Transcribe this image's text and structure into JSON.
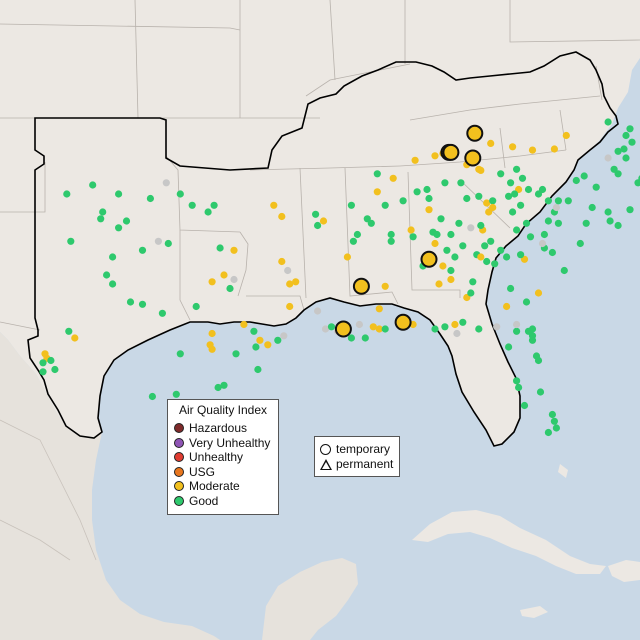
{
  "colors": {
    "ocean": "#c9d8e6",
    "land": "#ece8e3",
    "land_other": "#e6e2dc",
    "region_outline": "#000000",
    "borders": "#b8b2ac",
    "Hazardous": "#7e2a2a",
    "Very Unhealthy": "#8f55b5",
    "Unhealthy": "#e03c31",
    "USG": "#e8761e",
    "Moderate": "#f2c01e",
    "Good": "#2ec96d",
    "No data": "#c7c7c7"
  },
  "legend": {
    "title": "Air Quality Index",
    "items": [
      "Hazardous",
      "Very Unhealthy",
      "Unhealthy",
      "USG",
      "Moderate",
      "Good"
    ]
  },
  "type_legend": {
    "items": [
      {
        "label": "temporary",
        "shape": "circle-icon"
      },
      {
        "label": "permanent",
        "shape": "triangle-icon"
      }
    ]
  },
  "monitors_large": [
    {
      "category": "Moderate",
      "lon": -84.5,
      "lat": 39.1
    },
    {
      "category": "Moderate",
      "lon": -85.8,
      "lat": 38.25
    },
    {
      "category": "Moderate",
      "lon": -85.7,
      "lat": 38.25
    },
    {
      "category": "Moderate",
      "lon": -84.6,
      "lat": 38.0
    },
    {
      "category": "Moderate",
      "lon": -86.8,
      "lat": 33.5
    },
    {
      "category": "Moderate",
      "lon": -90.2,
      "lat": 32.3
    },
    {
      "category": "Moderate",
      "lon": -88.1,
      "lat": 30.7
    },
    {
      "category": "Moderate",
      "lon": -91.1,
      "lat": 30.4
    }
  ],
  "monitors_small": [
    {
      "category": "Good",
      "lon": -105.0,
      "lat": 36.4
    },
    {
      "category": "Good",
      "lon": -103.7,
      "lat": 36.8
    },
    {
      "category": "Good",
      "lon": -102.4,
      "lat": 36.4
    },
    {
      "category": "Good",
      "lon": -100.8,
      "lat": 36.2
    },
    {
      "category": "Good",
      "lon": -99.3,
      "lat": 36.4
    },
    {
      "category": "No data",
      "lon": -100.0,
      "lat": 36.9
    },
    {
      "category": "Good",
      "lon": -98.7,
      "lat": 35.9
    },
    {
      "category": "Good",
      "lon": -103.3,
      "lat": 35.3
    },
    {
      "category": "Good",
      "lon": -103.2,
      "lat": 35.6
    },
    {
      "category": "Good",
      "lon": -102.0,
      "lat": 35.2
    },
    {
      "category": "Good",
      "lon": -102.4,
      "lat": 34.9
    },
    {
      "category": "Good",
      "lon": -104.8,
      "lat": 34.3
    },
    {
      "category": "Good",
      "lon": -102.7,
      "lat": 33.6
    },
    {
      "category": "Good",
      "lon": -101.2,
      "lat": 33.9
    },
    {
      "category": "No data",
      "lon": -100.4,
      "lat": 34.3
    },
    {
      "category": "Good",
      "lon": -99.9,
      "lat": 34.2
    },
    {
      "category": "Good",
      "lon": -97.9,
      "lat": 35.6
    },
    {
      "category": "Good",
      "lon": -97.6,
      "lat": 35.9
    },
    {
      "category": "Moderate",
      "lon": -96.6,
      "lat": 33.9
    },
    {
      "category": "Good",
      "lon": -97.3,
      "lat": 34.0
    },
    {
      "category": "Good",
      "lon": -103.0,
      "lat": 32.8
    },
    {
      "category": "Good",
      "lon": -102.7,
      "lat": 32.4
    },
    {
      "category": "Good",
      "lon": -101.8,
      "lat": 31.6
    },
    {
      "category": "Good",
      "lon": -101.2,
      "lat": 31.5
    },
    {
      "category": "Good",
      "lon": -100.2,
      "lat": 31.1
    },
    {
      "category": "Moderate",
      "lon": -97.7,
      "lat": 32.5
    },
    {
      "category": "Moderate",
      "lon": -97.1,
      "lat": 32.8
    },
    {
      "category": "No data",
      "lon": -96.6,
      "lat": 32.6
    },
    {
      "category": "Good",
      "lon": -96.8,
      "lat": 32.2
    },
    {
      "category": "Good",
      "lon": -98.5,
      "lat": 31.4
    },
    {
      "category": "Moderate",
      "lon": -104.6,
      "lat": 30.0
    },
    {
      "category": "Good",
      "lon": -104.9,
      "lat": 30.3
    },
    {
      "category": "Moderate",
      "lon": -106.1,
      "lat": 29.3
    },
    {
      "category": "Moderate",
      "lon": -106.0,
      "lat": 29.1
    },
    {
      "category": "Good",
      "lon": -105.8,
      "lat": 29.0
    },
    {
      "category": "Good",
      "lon": -106.2,
      "lat": 28.9
    },
    {
      "category": "Good",
      "lon": -105.6,
      "lat": 28.6
    },
    {
      "category": "Good",
      "lon": -106.2,
      "lat": 28.5
    },
    {
      "category": "Good",
      "lon": -99.3,
      "lat": 29.3
    },
    {
      "category": "Moderate",
      "lon": -97.7,
      "lat": 30.2
    },
    {
      "category": "Moderate",
      "lon": -97.8,
      "lat": 29.7
    },
    {
      "category": "Moderate",
      "lon": -97.7,
      "lat": 29.5
    },
    {
      "category": "Good",
      "lon": -96.5,
      "lat": 29.3
    },
    {
      "category": "Moderate",
      "lon": -96.1,
      "lat": 30.6
    },
    {
      "category": "Moderate",
      "lon": -95.3,
      "lat": 29.9
    },
    {
      "category": "Good",
      "lon": -95.5,
      "lat": 29.6
    },
    {
      "category": "Moderate",
      "lon": -94.9,
      "lat": 29.7
    },
    {
      "category": "No data",
      "lon": -94.1,
      "lat": 30.1
    },
    {
      "category": "Good",
      "lon": -94.4,
      "lat": 29.9
    },
    {
      "category": "Good",
      "lon": -95.6,
      "lat": 30.3
    },
    {
      "category": "Good",
      "lon": -95.4,
      "lat": 28.6
    },
    {
      "category": "Good",
      "lon": -97.4,
      "lat": 27.8
    },
    {
      "category": "Good",
      "lon": -97.1,
      "lat": 27.9
    },
    {
      "category": "Good",
      "lon": -100.7,
      "lat": 27.4
    },
    {
      "category": "Good",
      "lon": -99.5,
      "lat": 27.5
    },
    {
      "category": "Good",
      "lon": -97.6,
      "lat": 26.2
    },
    {
      "category": "Good",
      "lon": -97.5,
      "lat": 25.9
    },
    {
      "category": "Good",
      "lon": -98.2,
      "lat": 26.2
    },
    {
      "category": "Moderate",
      "lon": -94.6,
      "lat": 35.9
    },
    {
      "category": "Moderate",
      "lon": -94.2,
      "lat": 35.4
    },
    {
      "category": "Moderate",
      "lon": -94.2,
      "lat": 33.4
    },
    {
      "category": "No data",
      "lon": -93.9,
      "lat": 33.0
    },
    {
      "category": "Moderate",
      "lon": -93.8,
      "lat": 32.4
    },
    {
      "category": "Moderate",
      "lon": -93.5,
      "lat": 32.5
    },
    {
      "category": "Moderate",
      "lon": -93.8,
      "lat": 31.4
    },
    {
      "category": "No data",
      "lon": -92.4,
      "lat": 31.2
    },
    {
      "category": "No data",
      "lon": -92.0,
      "lat": 30.4
    },
    {
      "category": "Good",
      "lon": -91.7,
      "lat": 30.5
    },
    {
      "category": "No data",
      "lon": -91.4,
      "lat": 30.3
    },
    {
      "category": "Good",
      "lon": -91.1,
      "lat": 30.2
    },
    {
      "category": "Good",
      "lon": -90.7,
      "lat": 30.0
    },
    {
      "category": "No data",
      "lon": -90.3,
      "lat": 30.6
    },
    {
      "category": "Good",
      "lon": -90.0,
      "lat": 30.0
    },
    {
      "category": "Moderate",
      "lon": -89.6,
      "lat": 30.5
    },
    {
      "category": "Moderate",
      "lon": -89.3,
      "lat": 30.4
    },
    {
      "category": "Good",
      "lon": -89.0,
      "lat": 30.4
    },
    {
      "category": "Good",
      "lon": -92.5,
      "lat": 35.5
    },
    {
      "category": "Good",
      "lon": -92.4,
      "lat": 35.0
    },
    {
      "category": "Moderate",
      "lon": -92.1,
      "lat": 35.2
    },
    {
      "category": "Good",
      "lon": -90.7,
      "lat": 35.9
    },
    {
      "category": "Good",
      "lon": -89.9,
      "lat": 35.3
    },
    {
      "category": "Good",
      "lon": -90.4,
      "lat": 34.6
    },
    {
      "category": "Good",
      "lon": -90.6,
      "lat": 34.3
    },
    {
      "category": "Moderate",
      "lon": -90.9,
      "lat": 33.6
    },
    {
      "category": "Moderate",
      "lon": -89.0,
      "lat": 32.3
    },
    {
      "category": "Moderate",
      "lon": -89.3,
      "lat": 31.3
    },
    {
      "category": "Good",
      "lon": -88.7,
      "lat": 34.3
    },
    {
      "category": "Moderate",
      "lon": -87.7,
      "lat": 34.8
    },
    {
      "category": "Good",
      "lon": -87.6,
      "lat": 34.5
    },
    {
      "category": "Good",
      "lon": -86.6,
      "lat": 34.7
    },
    {
      "category": "Good",
      "lon": -86.4,
      "lat": 34.6
    },
    {
      "category": "Moderate",
      "lon": -86.5,
      "lat": 34.2
    },
    {
      "category": "Good",
      "lon": -85.7,
      "lat": 34.6
    },
    {
      "category": "Good",
      "lon": -85.1,
      "lat": 34.1
    },
    {
      "category": "Good",
      "lon": -85.5,
      "lat": 33.6
    },
    {
      "category": "Good",
      "lon": -87.1,
      "lat": 33.2
    },
    {
      "category": "Moderate",
      "lon": -86.3,
      "lat": 32.4
    },
    {
      "category": "Moderate",
      "lon": -85.7,
      "lat": 32.6
    },
    {
      "category": "Moderate",
      "lon": -84.9,
      "lat": 31.8
    },
    {
      "category": "Moderate",
      "lon": -87.6,
      "lat": 30.6
    },
    {
      "category": "Good",
      "lon": -86.5,
      "lat": 30.4
    },
    {
      "category": "Good",
      "lon": -86.0,
      "lat": 30.5
    },
    {
      "category": "Moderate",
      "lon": -85.5,
      "lat": 30.6
    },
    {
      "category": "No data",
      "lon": -85.4,
      "lat": 30.2
    },
    {
      "category": "Good",
      "lon": -85.1,
      "lat": 30.7
    },
    {
      "category": "Good",
      "lon": -84.3,
      "lat": 30.4
    },
    {
      "category": "No data",
      "lon": -83.4,
      "lat": 30.5
    },
    {
      "category": "Good",
      "lon": -82.4,
      "lat": 30.3
    },
    {
      "category": "Good",
      "lon": -81.8,
      "lat": 30.3
    },
    {
      "category": "Good",
      "lon": -81.6,
      "lat": 30.4
    },
    {
      "category": "Good",
      "lon": -81.6,
      "lat": 30.1
    },
    {
      "category": "Good",
      "lon": -81.6,
      "lat": 29.9
    },
    {
      "category": "No data",
      "lon": -82.4,
      "lat": 30.6
    },
    {
      "category": "Good",
      "lon": -82.8,
      "lat": 29.6
    },
    {
      "category": "Good",
      "lon": -81.4,
      "lat": 29.2
    },
    {
      "category": "Good",
      "lon": -81.3,
      "lat": 29.0
    },
    {
      "category": "Good",
      "lon": -82.4,
      "lat": 28.1
    },
    {
      "category": "Good",
      "lon": -82.3,
      "lat": 27.8
    },
    {
      "category": "Good",
      "lon": -82.0,
      "lat": 27.0
    },
    {
      "category": "Good",
      "lon": -81.2,
      "lat": 27.6
    },
    {
      "category": "Good",
      "lon": -80.6,
      "lat": 26.6
    },
    {
      "category": "Good",
      "lon": -80.5,
      "lat": 26.3
    },
    {
      "category": "Good",
      "lon": -80.4,
      "lat": 26.0
    },
    {
      "category": "Good",
      "lon": -80.8,
      "lat": 25.8
    },
    {
      "category": "Good",
      "lon": -84.4,
      "lat": 33.7
    },
    {
      "category": "Moderate",
      "lon": -84.2,
      "lat": 33.6
    },
    {
      "category": "Good",
      "lon": -84.0,
      "lat": 34.1
    },
    {
      "category": "No data",
      "lon": -84.7,
      "lat": 34.9
    },
    {
      "category": "Moderate",
      "lon": -84.1,
      "lat": 34.8
    },
    {
      "category": "Good",
      "lon": -83.7,
      "lat": 34.3
    },
    {
      "category": "Good",
      "lon": -83.2,
      "lat": 33.9
    },
    {
      "category": "Good",
      "lon": -83.5,
      "lat": 33.3
    },
    {
      "category": "Good",
      "lon": -84.6,
      "lat": 32.5
    },
    {
      "category": "Good",
      "lon": -82.7,
      "lat": 32.2
    },
    {
      "category": "Moderate",
      "lon": -82.9,
      "lat": 31.4
    },
    {
      "category": "Moderate",
      "lon": -81.3,
      "lat": 32.0
    },
    {
      "category": "Good",
      "lon": -81.9,
      "lat": 31.6
    },
    {
      "category": "Moderate",
      "lon": -82.0,
      "lat": 33.5
    },
    {
      "category": "Good",
      "lon": -82.2,
      "lat": 33.7
    },
    {
      "category": "Good",
      "lon": -81.0,
      "lat": 34.0
    },
    {
      "category": "Good",
      "lon": -80.6,
      "lat": 33.8
    },
    {
      "category": "No data",
      "lon": -81.1,
      "lat": 34.2
    },
    {
      "category": "Good",
      "lon": -82.4,
      "lat": 34.8
    },
    {
      "category": "Good",
      "lon": -80.0,
      "lat": 33.0
    },
    {
      "category": "Good",
      "lon": -79.2,
      "lat": 34.2
    },
    {
      "category": "Good",
      "lon": -80.8,
      "lat": 35.2
    },
    {
      "category": "Good",
      "lon": -80.5,
      "lat": 35.6
    },
    {
      "category": "No data",
      "lon": -80.4,
      "lat": 35.8
    },
    {
      "category": "Good",
      "lon": -80.3,
      "lat": 36.1
    },
    {
      "category": "Good",
      "lon": -79.8,
      "lat": 36.1
    },
    {
      "category": "Good",
      "lon": -78.6,
      "lat": 35.8
    },
    {
      "category": "Good",
      "lon": -77.8,
      "lat": 35.6
    },
    {
      "category": "Good",
      "lon": -78.9,
      "lat": 35.1
    },
    {
      "category": "Good",
      "lon": -77.7,
      "lat": 35.2
    },
    {
      "category": "Good",
      "lon": -77.3,
      "lat": 35.0
    },
    {
      "category": "Good",
      "lon": -76.7,
      "lat": 35.7
    },
    {
      "category": "Good",
      "lon": -82.6,
      "lat": 35.6
    },
    {
      "category": "Good",
      "lon": -82.2,
      "lat": 35.9
    },
    {
      "category": "Good",
      "lon": -82.8,
      "lat": 36.3
    },
    {
      "category": "Moderate",
      "lon": -82.3,
      "lat": 36.6
    },
    {
      "category": "Good",
      "lon": -82.5,
      "lat": 36.4
    },
    {
      "category": "Good",
      "lon": -81.8,
      "lat": 36.6
    },
    {
      "category": "Good",
      "lon": -81.3,
      "lat": 36.4
    },
    {
      "category": "Good",
      "lon": -81.1,
      "lat": 36.6
    },
    {
      "category": "Good",
      "lon": -80.8,
      "lat": 36.1
    },
    {
      "category": "Good",
      "lon": -79.4,
      "lat": 37.0
    },
    {
      "category": "Good",
      "lon": -79.0,
      "lat": 37.2
    },
    {
      "category": "Good",
      "lon": -78.4,
      "lat": 36.7
    },
    {
      "category": "Good",
      "lon": -77.5,
      "lat": 37.5
    },
    {
      "category": "Good",
      "lon": -77.3,
      "lat": 37.3
    },
    {
      "category": "No data",
      "lon": -77.8,
      "lat": 38.0
    },
    {
      "category": "Good",
      "lon": -77.3,
      "lat": 38.3
    },
    {
      "category": "Good",
      "lon": -77.0,
      "lat": 38.4
    },
    {
      "category": "Good",
      "lon": -76.6,
      "lat": 38.7
    },
    {
      "category": "Good",
      "lon": -76.3,
      "lat": 36.9
    },
    {
      "category": "Good",
      "lon": -76.1,
      "lat": 37.1
    },
    {
      "category": "Good",
      "lon": -76.7,
      "lat": 39.3
    },
    {
      "category": "Good",
      "lon": -76.9,
      "lat": 39.0
    },
    {
      "category": "Good",
      "lon": -77.8,
      "lat": 39.6
    },
    {
      "category": "Good",
      "lon": -75.7,
      "lat": 39.7
    },
    {
      "category": "Good",
      "lon": -75.6,
      "lat": 39.5
    },
    {
      "category": "Good",
      "lon": -75.8,
      "lat": 39.9
    },
    {
      "category": "Good",
      "lon": -76.9,
      "lat": 38.0
    },
    {
      "category": "Moderate",
      "lon": -79.9,
      "lat": 39.0
    },
    {
      "category": "Moderate",
      "lon": -80.5,
      "lat": 38.4
    },
    {
      "category": "Moderate",
      "lon": -81.6,
      "lat": 38.35
    },
    {
      "category": "Moderate",
      "lon": -82.6,
      "lat": 38.5
    },
    {
      "category": "Moderate",
      "lon": -83.7,
      "lat": 38.65
    },
    {
      "category": "Moderate",
      "lon": -84.3,
      "lat": 37.5
    },
    {
      "category": "Moderate",
      "lon": -84.2,
      "lat": 37.45
    },
    {
      "category": "Moderate",
      "lon": -84.9,
      "lat": 37.7
    },
    {
      "category": "Moderate",
      "lon": -86.5,
      "lat": 38.1
    },
    {
      "category": "Moderate",
      "lon": -86.1,
      "lat": 38.2
    },
    {
      "category": "Moderate",
      "lon": -87.5,
      "lat": 37.9
    },
    {
      "category": "Moderate",
      "lon": -88.6,
      "lat": 37.1
    },
    {
      "category": "Good",
      "lon": -86.9,
      "lat": 36.6
    },
    {
      "category": "Good",
      "lon": -86.0,
      "lat": 36.9
    },
    {
      "category": "Good",
      "lon": -85.2,
      "lat": 36.9
    },
    {
      "category": "Good",
      "lon": -83.2,
      "lat": 37.3
    },
    {
      "category": "Good",
      "lon": -82.4,
      "lat": 37.5
    },
    {
      "category": "Good",
      "lon": -82.7,
      "lat": 36.9
    },
    {
      "category": "Good",
      "lon": -82.1,
      "lat": 37.1
    },
    {
      "category": "Moderate",
      "lon": -83.9,
      "lat": 36.0
    },
    {
      "category": "Good",
      "lon": -84.3,
      "lat": 36.3
    },
    {
      "category": "Good",
      "lon": -83.6,
      "lat": 36.1
    },
    {
      "category": "Good",
      "lon": -84.9,
      "lat": 36.2
    },
    {
      "category": "Good",
      "lon": -85.3,
      "lat": 35.1
    },
    {
      "category": "Good",
      "lon": -86.8,
      "lat": 36.2
    },
    {
      "category": "Good",
      "lon": -87.4,
      "lat": 36.5
    },
    {
      "category": "Good",
      "lon": -88.1,
      "lat": 36.1
    },
    {
      "category": "Moderate",
      "lon": -86.8,
      "lat": 35.7
    },
    {
      "category": "Good",
      "lon": -86.2,
      "lat": 35.3
    },
    {
      "category": "Good",
      "lon": -89.0,
      "lat": 35.9
    },
    {
      "category": "Good",
      "lon": -89.7,
      "lat": 35.1
    },
    {
      "category": "Moderate",
      "lon": -89.4,
      "lat": 36.5
    },
    {
      "category": "Good",
      "lon": -89.4,
      "lat": 37.3
    },
    {
      "category": "Good",
      "lon": -88.7,
      "lat": 34.6
    },
    {
      "category": "Good",
      "lon": -84.7,
      "lat": 32.0
    },
    {
      "category": "Good",
      "lon": -85.7,
      "lat": 33.0
    },
    {
      "category": "Moderate",
      "lon": -86.1,
      "lat": 33.2
    },
    {
      "category": "Good",
      "lon": -85.9,
      "lat": 33.9
    },
    {
      "category": "Moderate",
      "lon": -83.6,
      "lat": 35.8
    },
    {
      "category": "Moderate",
      "lon": -83.8,
      "lat": 35.6
    },
    {
      "category": "Good",
      "lon": -84.2,
      "lat": 35.0
    },
    {
      "category": "Good",
      "lon": -81.9,
      "lat": 35.1
    },
    {
      "category": "Good",
      "lon": -81.7,
      "lat": 34.5
    },
    {
      "category": "Good",
      "lon": -81.0,
      "lat": 34.6
    },
    {
      "category": "Good",
      "lon": -80.3,
      "lat": 35.1
    },
    {
      "category": "Good",
      "lon": -83.9,
      "lat": 33.4
    },
    {
      "category": "Good",
      "lon": -82.9,
      "lat": 33.6
    }
  ]
}
